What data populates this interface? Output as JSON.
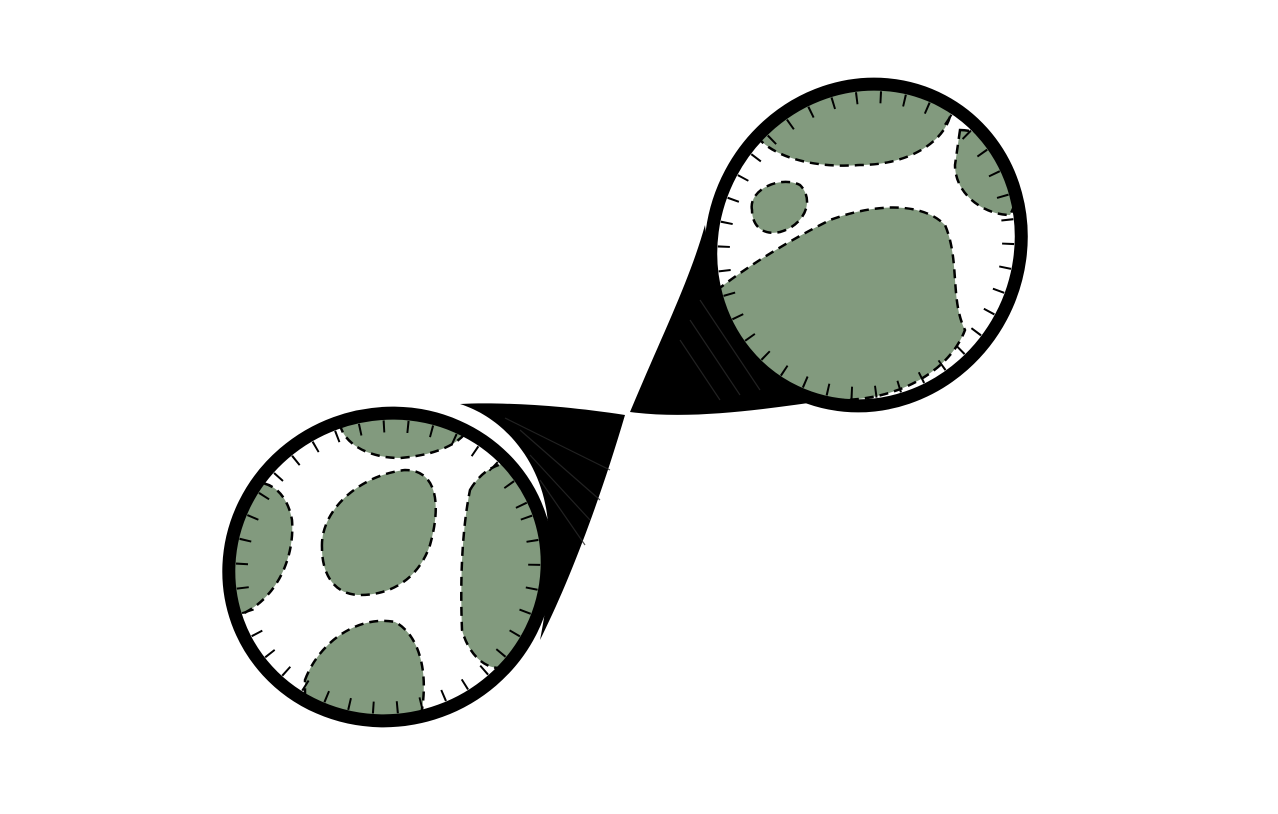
{
  "scene": {
    "subject": "figure-eight-hourglass-with-two-globes",
    "background_color": "#ffffff",
    "ink_color": "#000000",
    "land_color": "#829a7e",
    "water_color": "#ffffff",
    "globes": [
      {
        "id": "upper-globe",
        "position": "upper-right"
      },
      {
        "id": "lower-globe",
        "position": "lower-left"
      }
    ],
    "waist": {
      "id": "hatched-neck",
      "position": "center"
    }
  }
}
